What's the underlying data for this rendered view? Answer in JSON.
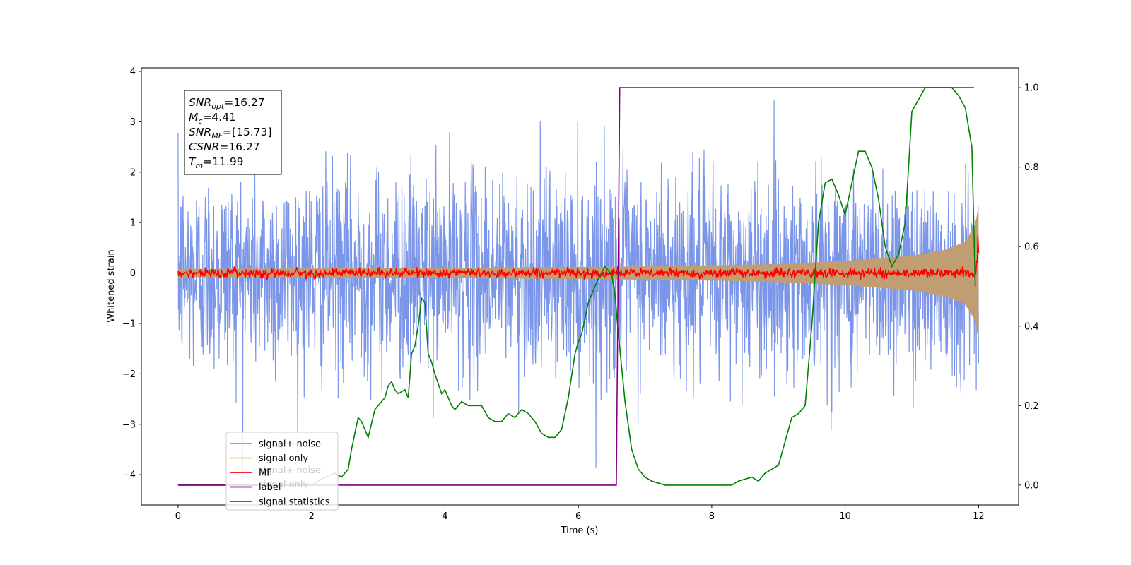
{
  "chart_data": {
    "type": "line",
    "xlabel": "Time (s)",
    "ylabel": "Whitened strain",
    "xlim": [
      -0.55,
      12.6
    ],
    "ylim_left": [
      -4.6,
      4.07
    ],
    "ylim_right": [
      -0.05,
      1.05
    ],
    "x_ticks": [
      0,
      2,
      4,
      6,
      8,
      10,
      12
    ],
    "y_left_ticks": [
      -4,
      -3,
      -2,
      -1,
      0,
      1,
      2,
      3,
      4
    ],
    "y_right_ticks": [
      0.0,
      0.2,
      0.4,
      0.6,
      0.8,
      1.0
    ],
    "grid": false,
    "legend_position": "lower-left",
    "colors": {
      "signal_noise": "#7b96e8",
      "signal_only_fill": "#c19d74",
      "signal_only_line": "#ffbe5a",
      "mf": "#ff0000",
      "label": "#800080",
      "signal_statistics": "#008000"
    },
    "annotation": {
      "lines": [
        {
          "sym": "SNR",
          "sub": "opt",
          "val": "=16.27"
        },
        {
          "sym": "M",
          "sub": "c",
          "val": "=4.41"
        },
        {
          "sym": "SNR",
          "sub": "MF",
          "val": "=[15.73]"
        },
        {
          "sym": "CSNR",
          "sub": "",
          "val": "=16.27"
        },
        {
          "sym": "T",
          "sub": "m",
          "val": "=11.99"
        }
      ]
    },
    "legend": {
      "entries": [
        {
          "label": "signal+ noise",
          "color": "#7b96e8"
        },
        {
          "label": "signal only",
          "color": "#ffbe5a"
        },
        {
          "label": "MF",
          "color": "#ff0000"
        },
        {
          "label": "label",
          "color": "#800080"
        },
        {
          "label": "signal statistics",
          "color": "#008000"
        }
      ],
      "ghost_text": [
        "signal+ noise",
        "signal only"
      ]
    },
    "series": [
      {
        "name": "signal+ noise",
        "axis": "left",
        "style": "noise",
        "x_range": [
          0,
          12
        ],
        "amplitude_std": 1.0,
        "peak_range": [
          -4.1,
          3.7
        ]
      },
      {
        "name": "signal only",
        "axis": "left",
        "style": "chirp_envelope",
        "envelope": {
          "x": [
            0,
            2,
            4,
            6,
            7,
            8,
            9,
            10,
            11,
            11.5,
            11.8,
            11.95,
            12.0
          ],
          "y": [
            0.08,
            0.09,
            0.1,
            0.12,
            0.13,
            0.15,
            0.18,
            0.24,
            0.34,
            0.46,
            0.62,
            0.95,
            1.35
          ]
        }
      },
      {
        "name": "MF",
        "axis": "left",
        "style": "noise_small",
        "amplitude_std": 0.045,
        "end_spike": 1.0
      },
      {
        "name": "label",
        "axis": "right",
        "x": [
          0,
          6.57,
          6.62,
          11.93
        ],
        "y": [
          0.0,
          0.0,
          1.0,
          1.0
        ]
      },
      {
        "name": "signal statistics",
        "axis": "right",
        "x": [
          0,
          0.5,
          1.0,
          1.5,
          2.0,
          2.2,
          2.35,
          2.45,
          2.55,
          2.6,
          2.7,
          2.75,
          2.85,
          2.95,
          3.0,
          3.1,
          3.15,
          3.2,
          3.25,
          3.3,
          3.4,
          3.45,
          3.5,
          3.55,
          3.6,
          3.65,
          3.7,
          3.75,
          3.8,
          3.85,
          3.95,
          4.0,
          4.1,
          4.15,
          4.25,
          4.35,
          4.45,
          4.55,
          4.65,
          4.75,
          4.85,
          4.95,
          5.05,
          5.15,
          5.25,
          5.35,
          5.45,
          5.55,
          5.65,
          5.75,
          5.85,
          5.95,
          6.0,
          6.05,
          6.1,
          6.15,
          6.2,
          6.3,
          6.4,
          6.5,
          6.55,
          6.6,
          6.7,
          6.8,
          6.9,
          7.0,
          7.1,
          7.3,
          7.6,
          8.0,
          8.2,
          8.3,
          8.4,
          8.6,
          8.7,
          8.8,
          8.9,
          9.0,
          9.1,
          9.2,
          9.3,
          9.4,
          9.5,
          9.6,
          9.7,
          9.8,
          9.9,
          10.0,
          10.1,
          10.2,
          10.3,
          10.4,
          10.5,
          10.6,
          10.7,
          10.8,
          10.9,
          11.0,
          11.2,
          11.4,
          11.6,
          11.7,
          11.8,
          11.9,
          11.95
        ],
        "y": [
          0.0,
          0.0,
          0.0,
          0.0,
          0.0,
          0.02,
          0.03,
          0.02,
          0.04,
          0.09,
          0.17,
          0.16,
          0.12,
          0.19,
          0.2,
          0.22,
          0.25,
          0.26,
          0.24,
          0.23,
          0.24,
          0.22,
          0.33,
          0.35,
          0.4,
          0.47,
          0.46,
          0.33,
          0.31,
          0.28,
          0.23,
          0.24,
          0.2,
          0.19,
          0.21,
          0.2,
          0.2,
          0.2,
          0.17,
          0.16,
          0.16,
          0.18,
          0.17,
          0.19,
          0.18,
          0.16,
          0.13,
          0.12,
          0.12,
          0.14,
          0.22,
          0.33,
          0.36,
          0.38,
          0.42,
          0.46,
          0.48,
          0.52,
          0.55,
          0.53,
          0.48,
          0.38,
          0.21,
          0.09,
          0.04,
          0.02,
          0.01,
          0.0,
          0.0,
          0.0,
          0.0,
          0.0,
          0.01,
          0.02,
          0.01,
          0.03,
          0.04,
          0.05,
          0.11,
          0.17,
          0.18,
          0.2,
          0.4,
          0.66,
          0.76,
          0.77,
          0.73,
          0.68,
          0.76,
          0.84,
          0.84,
          0.8,
          0.72,
          0.6,
          0.55,
          0.58,
          0.66,
          0.94,
          1.0,
          1.0,
          1.0,
          0.98,
          0.95,
          0.85,
          0.5
        ]
      }
    ]
  }
}
